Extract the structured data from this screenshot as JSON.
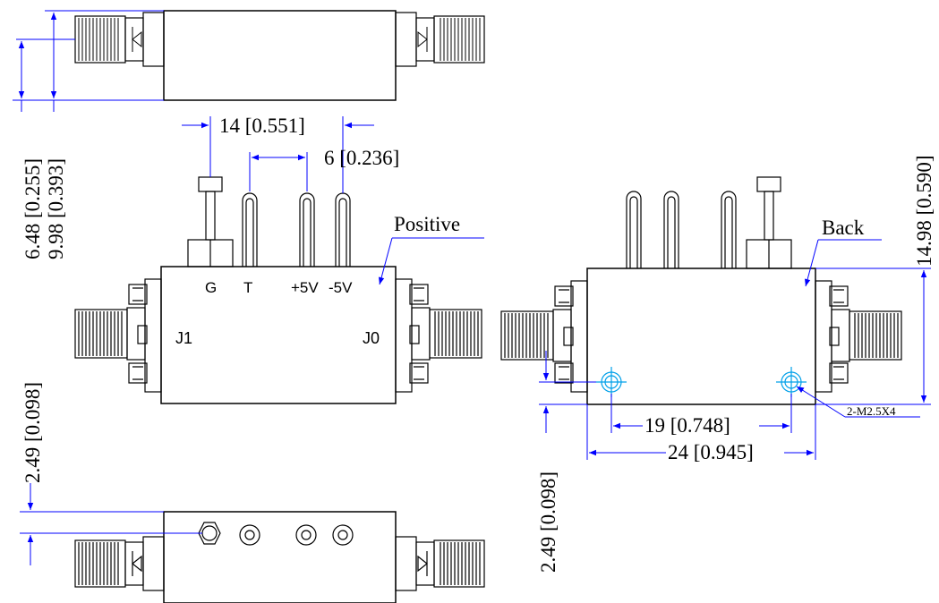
{
  "colors": {
    "outline": "#000000",
    "dimension": "#0000ff",
    "hole": "#00a0e9"
  },
  "views": {
    "top": {
      "dim_inner": "6.48 [0.255]",
      "dim_outer": "9.98 [0.393]"
    },
    "front": {
      "label": "Positive",
      "dim_pins_wide": "14 [0.551]",
      "dim_pins_narrow": "6 [0.236]",
      "pins": [
        "G",
        "T",
        "+5V",
        "-5V"
      ],
      "port_left": "J1",
      "port_right": "J0",
      "dim_pin_offset": "2.49 [0.098]"
    },
    "back": {
      "label": "Back",
      "dim_height": "14.98 [0.590]",
      "dim_hole_spacing": "19 [0.748]",
      "dim_body_width": "24 [0.945]",
      "dim_hole_offset": "2.49 [0.098]",
      "hole_note": "2-M2.5X4"
    }
  },
  "icons": [
    "sma-connector-icon",
    "mounting-screw-icon",
    "threaded-hole-icon",
    "feedthrough-pin-icon"
  ]
}
